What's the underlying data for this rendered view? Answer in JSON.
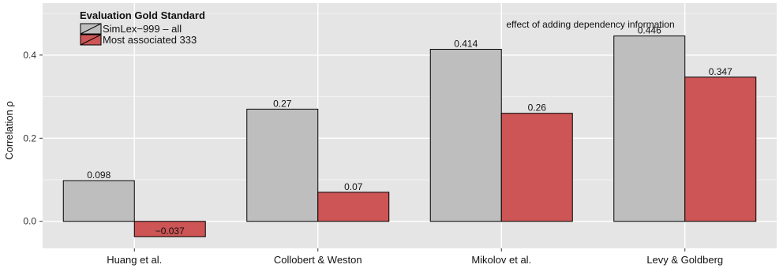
{
  "chart_data": {
    "type": "bar",
    "categories": [
      "Huang et al.",
      "Collobert & Weston",
      "Mikolov et al.",
      "Levy & Goldberg"
    ],
    "series": [
      {
        "name": "SimLex−999 – all",
        "values": [
          0.098,
          0.27,
          0.414,
          0.446
        ],
        "color": "#bebebe"
      },
      {
        "name": "Most associated 333",
        "values": [
          -0.037,
          0.07,
          0.26,
          0.347
        ],
        "color": "#cd5555"
      }
    ],
    "data_labels": [
      [
        "0.098",
        "0.27",
        "0.414",
        "0.446"
      ],
      [
        "−0.037",
        "0.07",
        "0.26",
        "0.347"
      ]
    ],
    "ylabel": "Correlation ρ",
    "xlabel": "",
    "yticks": [
      0.0,
      0.2,
      0.4
    ],
    "ytick_labels": [
      "0.0",
      "0.2",
      "0.4"
    ],
    "ylim": [
      -0.065,
      0.525
    ],
    "grid": true,
    "legend": {
      "title": "Evaluation Gold Standard",
      "position": "top-left"
    },
    "annotation": "effect of adding dependency information",
    "colors": {
      "panel": "#e5e5e5",
      "grid_major": "#ffffff",
      "grid_minor": "#f2f2f2",
      "bar_border": "#000000"
    }
  }
}
